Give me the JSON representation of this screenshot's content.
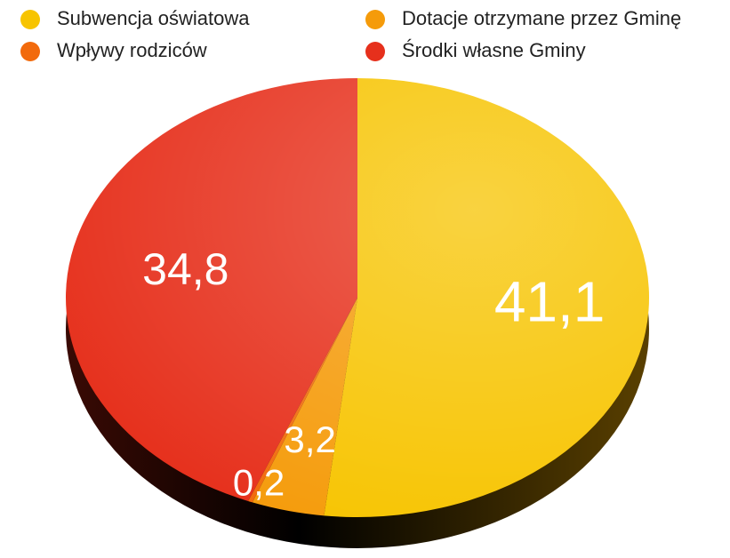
{
  "chart_data": {
    "type": "pie",
    "categories": [
      "Subwencja oświatowa",
      "Dotacje otrzymane przez Gminę",
      "Wpływy rodziców",
      "Środki własne Gminy"
    ],
    "values": [
      41.1,
      3.2,
      0.2,
      34.8
    ],
    "value_labels": [
      "41,1",
      "3,2",
      "0,2",
      "34,8"
    ],
    "colors": [
      "#f7c400",
      "#f59b0a",
      "#f26a0c",
      "#e6301c"
    ],
    "legend": "top"
  }
}
